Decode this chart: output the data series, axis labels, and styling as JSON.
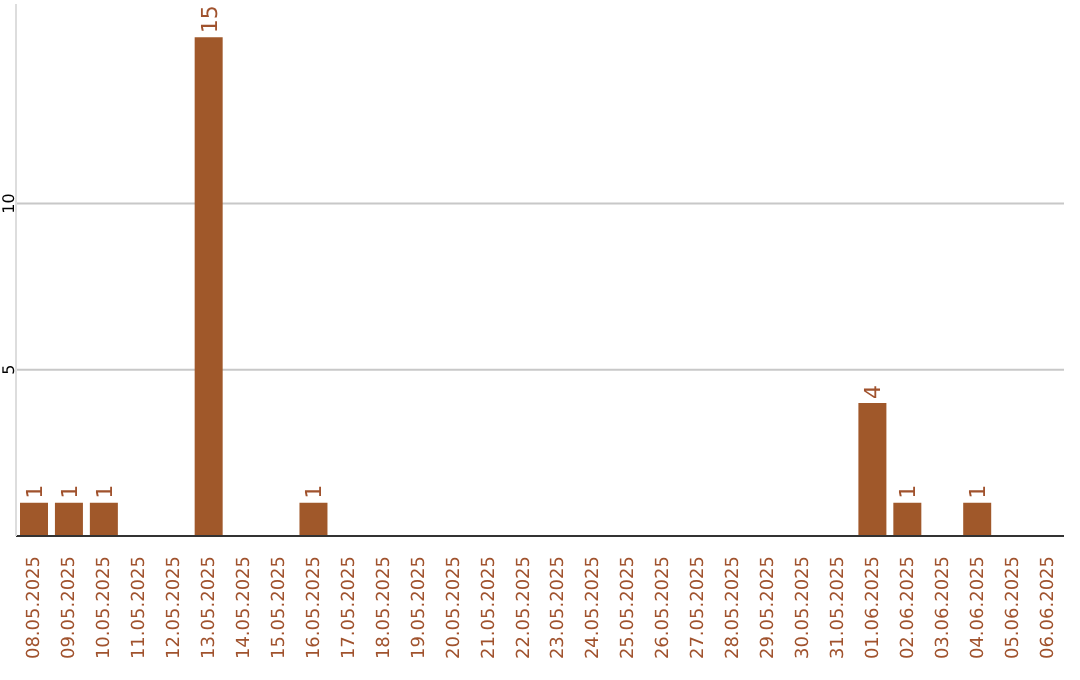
{
  "chart_data": {
    "type": "bar",
    "categories": [
      "08.05.2025",
      "09.05.2025",
      "10.05.2025",
      "11.05.2025",
      "12.05.2025",
      "13.05.2025",
      "14.05.2025",
      "15.05.2025",
      "16.05.2025",
      "17.05.2025",
      "18.05.2025",
      "19.05.2025",
      "20.05.2025",
      "21.05.2025",
      "22.05.2025",
      "23.05.2025",
      "24.05.2025",
      "25.05.2025",
      "26.05.2025",
      "27.05.2025",
      "28.05.2025",
      "29.05.2025",
      "30.05.2025",
      "31.05.2025",
      "01.06.2025",
      "02.06.2025",
      "03.06.2025",
      "04.06.2025",
      "05.06.2025",
      "06.06.2025"
    ],
    "values": [
      1,
      1,
      1,
      0,
      0,
      15,
      0,
      0,
      1,
      0,
      0,
      0,
      0,
      0,
      0,
      0,
      0,
      0,
      0,
      0,
      0,
      0,
      0,
      0,
      4,
      1,
      0,
      1,
      0,
      0
    ],
    "value_labels": [
      "1",
      "1",
      "1",
      null,
      null,
      "15",
      null,
      null,
      "1",
      null,
      null,
      null,
      null,
      null,
      null,
      null,
      null,
      null,
      null,
      null,
      null,
      null,
      null,
      null,
      "4",
      "1",
      null,
      "1",
      null,
      null
    ],
    "color": "#a0582a",
    "ylim": [
      0,
      16
    ],
    "yticks": [
      {
        "value": 0,
        "label": null
      },
      5,
      10
    ],
    "grid": "y"
  }
}
